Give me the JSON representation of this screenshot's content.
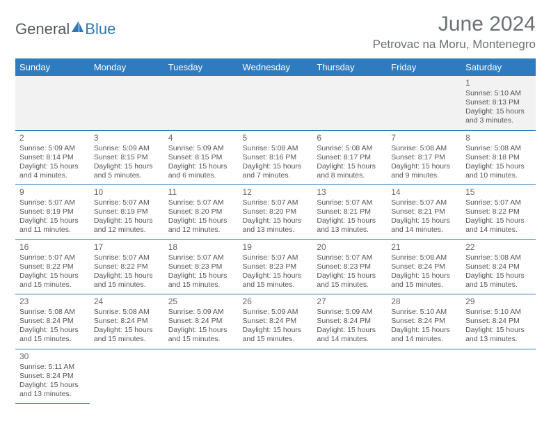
{
  "logo": {
    "text1": "General",
    "text2": "Blue"
  },
  "header": {
    "title": "June 2024",
    "location": "Petrovac na Moru, Montenegro"
  },
  "colors": {
    "header_bg": "#2f7bbf",
    "header_text": "#ffffff",
    "row_border": "#2f7bbf",
    "first_row_bg": "#f2f2f2",
    "title_color": "#6a7075",
    "logo_gray": "#555b60",
    "logo_blue": "#2f78b6",
    "cell_text": "#555555"
  },
  "weekdays": [
    "Sunday",
    "Monday",
    "Tuesday",
    "Wednesday",
    "Thursday",
    "Friday",
    "Saturday"
  ],
  "weeks": [
    [
      null,
      null,
      null,
      null,
      null,
      null,
      {
        "n": "1",
        "sunrise": "Sunrise: 5:10 AM",
        "sunset": "Sunset: 8:13 PM",
        "daylight": "Daylight: 15 hours and 3 minutes."
      }
    ],
    [
      {
        "n": "2",
        "sunrise": "Sunrise: 5:09 AM",
        "sunset": "Sunset: 8:14 PM",
        "daylight": "Daylight: 15 hours and 4 minutes."
      },
      {
        "n": "3",
        "sunrise": "Sunrise: 5:09 AM",
        "sunset": "Sunset: 8:15 PM",
        "daylight": "Daylight: 15 hours and 5 minutes."
      },
      {
        "n": "4",
        "sunrise": "Sunrise: 5:09 AM",
        "sunset": "Sunset: 8:15 PM",
        "daylight": "Daylight: 15 hours and 6 minutes."
      },
      {
        "n": "5",
        "sunrise": "Sunrise: 5:08 AM",
        "sunset": "Sunset: 8:16 PM",
        "daylight": "Daylight: 15 hours and 7 minutes."
      },
      {
        "n": "6",
        "sunrise": "Sunrise: 5:08 AM",
        "sunset": "Sunset: 8:17 PM",
        "daylight": "Daylight: 15 hours and 8 minutes."
      },
      {
        "n": "7",
        "sunrise": "Sunrise: 5:08 AM",
        "sunset": "Sunset: 8:17 PM",
        "daylight": "Daylight: 15 hours and 9 minutes."
      },
      {
        "n": "8",
        "sunrise": "Sunrise: 5:08 AM",
        "sunset": "Sunset: 8:18 PM",
        "daylight": "Daylight: 15 hours and 10 minutes."
      }
    ],
    [
      {
        "n": "9",
        "sunrise": "Sunrise: 5:07 AM",
        "sunset": "Sunset: 8:19 PM",
        "daylight": "Daylight: 15 hours and 11 minutes."
      },
      {
        "n": "10",
        "sunrise": "Sunrise: 5:07 AM",
        "sunset": "Sunset: 8:19 PM",
        "daylight": "Daylight: 15 hours and 12 minutes."
      },
      {
        "n": "11",
        "sunrise": "Sunrise: 5:07 AM",
        "sunset": "Sunset: 8:20 PM",
        "daylight": "Daylight: 15 hours and 12 minutes."
      },
      {
        "n": "12",
        "sunrise": "Sunrise: 5:07 AM",
        "sunset": "Sunset: 8:20 PM",
        "daylight": "Daylight: 15 hours and 13 minutes."
      },
      {
        "n": "13",
        "sunrise": "Sunrise: 5:07 AM",
        "sunset": "Sunset: 8:21 PM",
        "daylight": "Daylight: 15 hours and 13 minutes."
      },
      {
        "n": "14",
        "sunrise": "Sunrise: 5:07 AM",
        "sunset": "Sunset: 8:21 PM",
        "daylight": "Daylight: 15 hours and 14 minutes."
      },
      {
        "n": "15",
        "sunrise": "Sunrise: 5:07 AM",
        "sunset": "Sunset: 8:22 PM",
        "daylight": "Daylight: 15 hours and 14 minutes."
      }
    ],
    [
      {
        "n": "16",
        "sunrise": "Sunrise: 5:07 AM",
        "sunset": "Sunset: 8:22 PM",
        "daylight": "Daylight: 15 hours and 15 minutes."
      },
      {
        "n": "17",
        "sunrise": "Sunrise: 5:07 AM",
        "sunset": "Sunset: 8:22 PM",
        "daylight": "Daylight: 15 hours and 15 minutes."
      },
      {
        "n": "18",
        "sunrise": "Sunrise: 5:07 AM",
        "sunset": "Sunset: 8:23 PM",
        "daylight": "Daylight: 15 hours and 15 minutes."
      },
      {
        "n": "19",
        "sunrise": "Sunrise: 5:07 AM",
        "sunset": "Sunset: 8:23 PM",
        "daylight": "Daylight: 15 hours and 15 minutes."
      },
      {
        "n": "20",
        "sunrise": "Sunrise: 5:07 AM",
        "sunset": "Sunset: 8:23 PM",
        "daylight": "Daylight: 15 hours and 15 minutes."
      },
      {
        "n": "21",
        "sunrise": "Sunrise: 5:08 AM",
        "sunset": "Sunset: 8:24 PM",
        "daylight": "Daylight: 15 hours and 15 minutes."
      },
      {
        "n": "22",
        "sunrise": "Sunrise: 5:08 AM",
        "sunset": "Sunset: 8:24 PM",
        "daylight": "Daylight: 15 hours and 15 minutes."
      }
    ],
    [
      {
        "n": "23",
        "sunrise": "Sunrise: 5:08 AM",
        "sunset": "Sunset: 8:24 PM",
        "daylight": "Daylight: 15 hours and 15 minutes."
      },
      {
        "n": "24",
        "sunrise": "Sunrise: 5:08 AM",
        "sunset": "Sunset: 8:24 PM",
        "daylight": "Daylight: 15 hours and 15 minutes."
      },
      {
        "n": "25",
        "sunrise": "Sunrise: 5:09 AM",
        "sunset": "Sunset: 8:24 PM",
        "daylight": "Daylight: 15 hours and 15 minutes."
      },
      {
        "n": "26",
        "sunrise": "Sunrise: 5:09 AM",
        "sunset": "Sunset: 8:24 PM",
        "daylight": "Daylight: 15 hours and 15 minutes."
      },
      {
        "n": "27",
        "sunrise": "Sunrise: 5:09 AM",
        "sunset": "Sunset: 8:24 PM",
        "daylight": "Daylight: 15 hours and 14 minutes."
      },
      {
        "n": "28",
        "sunrise": "Sunrise: 5:10 AM",
        "sunset": "Sunset: 8:24 PM",
        "daylight": "Daylight: 15 hours and 14 minutes."
      },
      {
        "n": "29",
        "sunrise": "Sunrise: 5:10 AM",
        "sunset": "Sunset: 8:24 PM",
        "daylight": "Daylight: 15 hours and 13 minutes."
      }
    ],
    [
      {
        "n": "30",
        "sunrise": "Sunrise: 5:11 AM",
        "sunset": "Sunset: 8:24 PM",
        "daylight": "Daylight: 15 hours and 13 minutes."
      },
      null,
      null,
      null,
      null,
      null,
      null
    ]
  ]
}
